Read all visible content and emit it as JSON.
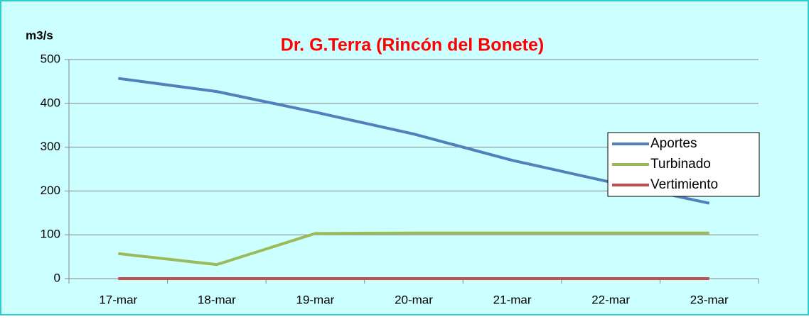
{
  "chart_data": {
    "type": "line",
    "title": "Dr. G.Terra (Rincón del Bonete)",
    "y_label": "m3/s",
    "categories": [
      "17-mar",
      "18-mar",
      "19-mar",
      "20-mar",
      "21-mar",
      "22-mar",
      "23-mar"
    ],
    "series": [
      {
        "name": "Aportes",
        "color": "#4f81bd",
        "values": [
          457,
          427,
          380,
          330,
          270,
          220,
          172
        ]
      },
      {
        "name": "Turbinado",
        "color": "#9bbb59",
        "values": [
          57,
          32,
          103,
          104,
          104,
          104,
          104
        ]
      },
      {
        "name": "Vertimiento",
        "color": "#c0504d",
        "values": [
          0,
          0,
          0,
          0,
          0,
          0,
          0
        ]
      }
    ],
    "ylim": [
      0,
      500
    ],
    "yticks": [
      0,
      100,
      200,
      300,
      400,
      500
    ],
    "grid": true,
    "legend": "right"
  }
}
